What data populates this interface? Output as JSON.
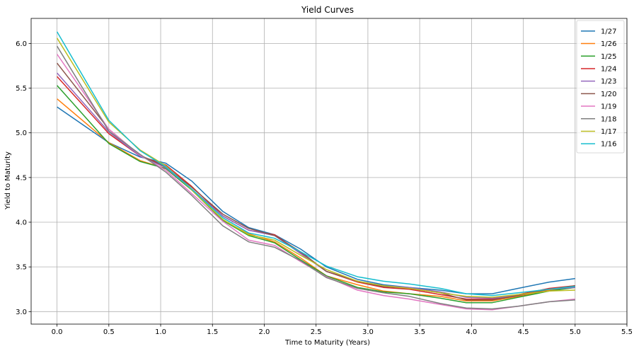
{
  "chart_data": {
    "type": "line",
    "title": "Yield Curves",
    "xlabel": "Time to Maturity (Years)",
    "ylabel": "Yield to Maturity",
    "xlim": [
      -0.25,
      5.5
    ],
    "ylim": [
      2.86,
      6.28
    ],
    "xticks": [
      0.0,
      0.5,
      1.0,
      1.5,
      2.0,
      2.5,
      3.0,
      3.5,
      4.0,
      4.5,
      5.0,
      5.5
    ],
    "xtick_labels": [
      "0.0",
      "0.5",
      "1.0",
      "1.5",
      "2.0",
      "2.5",
      "3.0",
      "3.5",
      "4.0",
      "4.5",
      "5.0",
      "5.5"
    ],
    "yticks": [
      3.0,
      3.5,
      4.0,
      4.5,
      5.0,
      5.5,
      6.0
    ],
    "ytick_labels": [
      "3.0",
      "3.5",
      "4.0",
      "4.5",
      "5.0",
      "5.5",
      "6.0"
    ],
    "grid": true,
    "legend_position": "top-right",
    "x": [
      0.0,
      0.5,
      0.8,
      1.05,
      1.3,
      1.6,
      1.85,
      2.1,
      2.35,
      2.6,
      2.9,
      3.15,
      3.4,
      3.7,
      3.95,
      4.2,
      4.45,
      4.75,
      5.0
    ],
    "series": [
      {
        "name": "1/27",
        "color": "#1f77b4",
        "values": [
          5.29,
          4.89,
          4.73,
          4.66,
          4.46,
          4.12,
          3.94,
          3.86,
          3.7,
          3.5,
          3.36,
          3.3,
          3.27,
          3.24,
          3.2,
          3.2,
          3.26,
          3.33,
          3.37
        ]
      },
      {
        "name": "1/26",
        "color": "#ff7f0e",
        "values": [
          5.38,
          4.89,
          4.69,
          4.6,
          4.36,
          4.02,
          3.87,
          3.78,
          3.6,
          3.4,
          3.3,
          3.23,
          3.2,
          3.17,
          3.12,
          3.12,
          3.17,
          3.24,
          3.27
        ]
      },
      {
        "name": "1/25",
        "color": "#2ca02c",
        "values": [
          5.53,
          4.88,
          4.68,
          4.6,
          4.36,
          4.02,
          3.85,
          3.77,
          3.58,
          3.4,
          3.27,
          3.22,
          3.2,
          3.15,
          3.1,
          3.1,
          3.16,
          3.23,
          3.27
        ]
      },
      {
        "name": "1/24",
        "color": "#d62728",
        "values": [
          5.63,
          4.99,
          4.74,
          4.64,
          4.4,
          4.07,
          3.91,
          3.86,
          3.66,
          3.45,
          3.33,
          3.27,
          3.25,
          3.19,
          3.14,
          3.14,
          3.19,
          3.26,
          3.29
        ]
      },
      {
        "name": "1/23",
        "color": "#9467bd",
        "values": [
          5.67,
          5.01,
          4.74,
          4.61,
          4.37,
          4.07,
          3.91,
          3.85,
          3.65,
          3.45,
          3.34,
          3.29,
          3.27,
          3.22,
          3.16,
          3.15,
          3.18,
          3.25,
          3.27
        ]
      },
      {
        "name": "1/20",
        "color": "#8c564b",
        "values": [
          5.78,
          5.04,
          4.75,
          4.62,
          4.39,
          4.09,
          3.93,
          3.85,
          3.67,
          3.45,
          3.34,
          3.28,
          3.26,
          3.21,
          3.13,
          3.13,
          3.18,
          3.25,
          3.29
        ]
      },
      {
        "name": "1/19",
        "color": "#e377c2",
        "values": [
          5.88,
          5.04,
          4.75,
          4.58,
          4.32,
          4.01,
          3.8,
          3.74,
          3.56,
          3.39,
          3.24,
          3.18,
          3.14,
          3.08,
          3.03,
          3.02,
          3.06,
          3.11,
          3.14
        ]
      },
      {
        "name": "1/18",
        "color": "#7f7f7f",
        "values": [
          5.97,
          5.02,
          4.76,
          4.56,
          4.3,
          3.96,
          3.78,
          3.72,
          3.57,
          3.38,
          3.26,
          3.21,
          3.17,
          3.09,
          3.04,
          3.03,
          3.06,
          3.11,
          3.13
        ]
      },
      {
        "name": "1/17",
        "color": "#bcbd22",
        "values": [
          6.06,
          5.12,
          4.81,
          4.63,
          4.36,
          4.03,
          3.86,
          3.8,
          3.63,
          3.47,
          3.34,
          3.29,
          3.26,
          3.21,
          3.17,
          3.16,
          3.19,
          3.23,
          3.24
        ]
      },
      {
        "name": "1/16",
        "color": "#17becf",
        "values": [
          6.13,
          5.14,
          4.8,
          4.62,
          4.37,
          4.05,
          3.88,
          3.82,
          3.67,
          3.51,
          3.39,
          3.34,
          3.31,
          3.26,
          3.2,
          3.18,
          3.21,
          3.25,
          3.28
        ]
      }
    ]
  }
}
